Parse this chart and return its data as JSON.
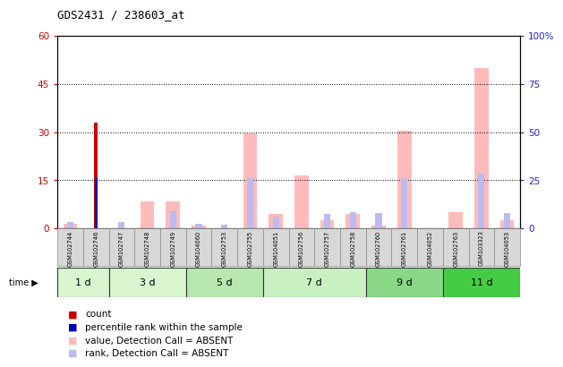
{
  "title": "GDS2431 / 238603_at",
  "samples": [
    "GSM102744",
    "GSM102746",
    "GSM102747",
    "GSM102748",
    "GSM102749",
    "GSM104060",
    "GSM102753",
    "GSM102755",
    "GSM104051",
    "GSM102756",
    "GSM102757",
    "GSM102758",
    "GSM102760",
    "GSM102761",
    "GSM104052",
    "GSM102763",
    "GSM103323",
    "GSM104053"
  ],
  "time_groups": [
    {
      "label": "1 d",
      "start": 0,
      "end": 2
    },
    {
      "label": "3 d",
      "start": 2,
      "end": 5
    },
    {
      "label": "5 d",
      "start": 5,
      "end": 8
    },
    {
      "label": "7 d",
      "start": 8,
      "end": 12
    },
    {
      "label": "9 d",
      "start": 12,
      "end": 15
    },
    {
      "label": "11 d",
      "start": 15,
      "end": 18
    }
  ],
  "time_group_colors": [
    "#d8f5d0",
    "#d8f5d0",
    "#b8e8b0",
    "#c8f0c0",
    "#88d888",
    "#44cc44"
  ],
  "value_absent": [
    1.5,
    0,
    0,
    8.5,
    8.5,
    1.0,
    0,
    29.5,
    4.5,
    16.5,
    2.5,
    4.5,
    1.0,
    30.5,
    0,
    5.0,
    50.0,
    2.5
  ],
  "rank_absent": [
    3.5,
    0,
    3.5,
    0,
    9.0,
    2.5,
    2.0,
    26.0,
    6.0,
    0,
    7.5,
    8.5,
    8.0,
    26.0,
    0,
    0,
    29.0,
    8.0
  ],
  "count_val": [
    0,
    33,
    0,
    0,
    0,
    0,
    0,
    0,
    0,
    0,
    0,
    0,
    0,
    0,
    0,
    0,
    0,
    0
  ],
  "percentile_rank": [
    0,
    26,
    0,
    0,
    0,
    0,
    0,
    0,
    0,
    0,
    0,
    0,
    0,
    0,
    0,
    0,
    0,
    0
  ],
  "ylim_left": [
    0,
    60
  ],
  "yticks_left": [
    0,
    15,
    30,
    45,
    60
  ],
  "yticks_right_labels": [
    "0",
    "25",
    "50",
    "75",
    "100%"
  ],
  "color_count": "#cc0000",
  "color_percentile": "#0000bb",
  "color_value_absent": "#ffbbbb",
  "color_rank_absent": "#bbbbee",
  "left_tick_color": "#cc0000",
  "right_tick_color": "#2222cc",
  "legend_items": [
    {
      "color": "#cc0000",
      "label": "count"
    },
    {
      "color": "#0000bb",
      "label": "percentile rank within the sample"
    },
    {
      "color": "#ffbbbb",
      "label": "value, Detection Call = ABSENT"
    },
    {
      "color": "#bbbbee",
      "label": "rank, Detection Call = ABSENT"
    }
  ]
}
